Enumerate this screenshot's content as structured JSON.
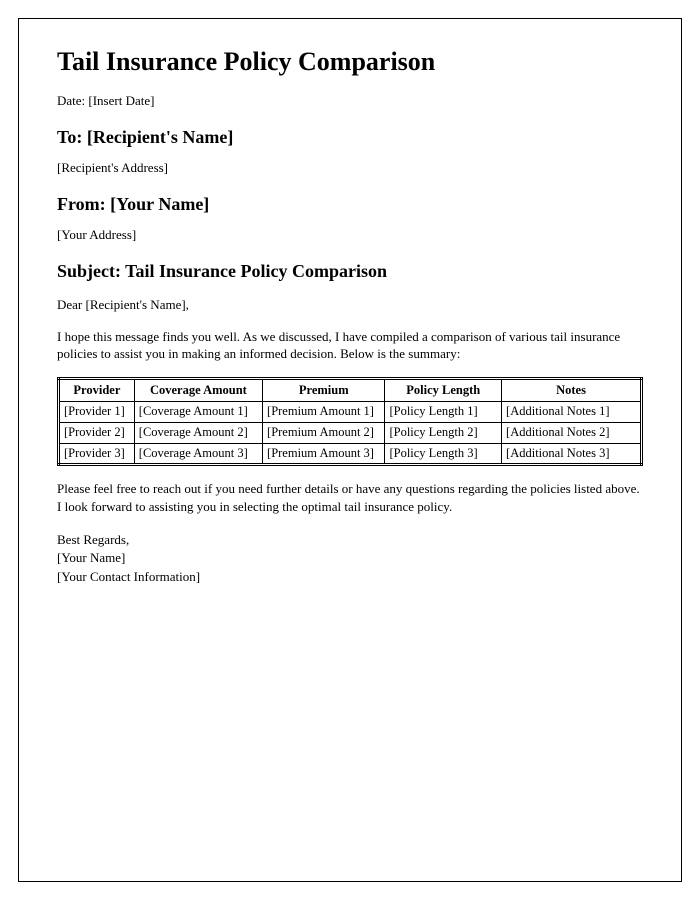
{
  "title": "Tail Insurance Policy Comparison",
  "date_line": "Date: [Insert Date]",
  "to_heading": "To: [Recipient's Name]",
  "to_address": "[Recipient's Address]",
  "from_heading": "From: [Your Name]",
  "from_address": "[Your Address]",
  "subject_heading": "Subject: Tail Insurance Policy Comparison",
  "salutation": "Dear [Recipient's Name],",
  "intro_paragraph": "I hope this message finds you well. As we discussed, I have compiled a comparison of various tail insurance policies to assist you in making an informed decision. Below is the summary:",
  "table": {
    "columns": [
      "Provider",
      "Coverage Amount",
      "Premium",
      "Policy Length",
      "Notes"
    ],
    "rows": [
      [
        "[Provider 1]",
        "[Coverage Amount 1]",
        "[Premium Amount 1]",
        "[Policy Length 1]",
        "[Additional Notes 1]"
      ],
      [
        "[Provider 2]",
        "[Coverage Amount 2]",
        "[Premium Amount 2]",
        "[Policy Length 2]",
        "[Additional Notes 2]"
      ],
      [
        "[Provider 3]",
        "[Coverage Amount 3]",
        "[Premium Amount 3]",
        "[Policy Length 3]",
        "[Additional Notes 3]"
      ]
    ]
  },
  "closing_paragraph": "Please feel free to reach out if you need further details or have any questions regarding the policies listed above. I look forward to assisting you in selecting the optimal tail insurance policy.",
  "signoff": {
    "regards": "Best Regards,",
    "name": "[Your Name]",
    "contact": "[Your Contact Information]"
  }
}
